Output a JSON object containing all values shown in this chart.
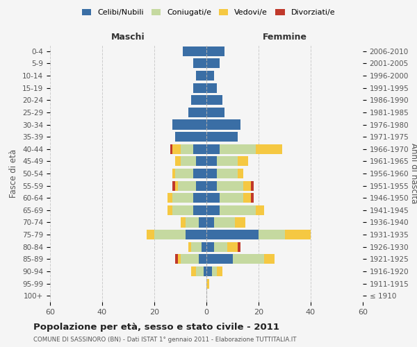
{
  "age_groups": [
    "100+",
    "95-99",
    "90-94",
    "85-89",
    "80-84",
    "75-79",
    "70-74",
    "65-69",
    "60-64",
    "55-59",
    "50-54",
    "45-49",
    "40-44",
    "35-39",
    "30-34",
    "25-29",
    "20-24",
    "15-19",
    "10-14",
    "5-9",
    "0-4"
  ],
  "birth_years": [
    "≤ 1910",
    "1911-1915",
    "1916-1920",
    "1921-1925",
    "1926-1930",
    "1931-1935",
    "1936-1940",
    "1941-1945",
    "1946-1950",
    "1951-1955",
    "1956-1960",
    "1961-1965",
    "1966-1970",
    "1971-1975",
    "1976-1980",
    "1981-1985",
    "1986-1990",
    "1991-1995",
    "1996-2000",
    "2001-2005",
    "2006-2010"
  ],
  "males": {
    "celibi": [
      0,
      0,
      1,
      3,
      2,
      8,
      3,
      5,
      5,
      4,
      5,
      4,
      5,
      12,
      13,
      7,
      6,
      5,
      4,
      5,
      9
    ],
    "coniugati": [
      0,
      0,
      3,
      7,
      4,
      12,
      5,
      8,
      8,
      7,
      7,
      6,
      5,
      0,
      0,
      0,
      0,
      0,
      0,
      0,
      0
    ],
    "vedovi": [
      0,
      0,
      2,
      1,
      1,
      3,
      2,
      2,
      2,
      1,
      1,
      2,
      3,
      0,
      0,
      0,
      0,
      0,
      0,
      0,
      0
    ],
    "divorziati": [
      0,
      0,
      0,
      1,
      0,
      0,
      0,
      0,
      0,
      1,
      0,
      0,
      1,
      0,
      0,
      0,
      0,
      0,
      0,
      0,
      0
    ]
  },
  "females": {
    "nubili": [
      0,
      0,
      2,
      10,
      3,
      20,
      3,
      5,
      5,
      4,
      4,
      4,
      5,
      12,
      13,
      7,
      6,
      4,
      3,
      5,
      7
    ],
    "coniugate": [
      0,
      0,
      2,
      12,
      5,
      10,
      8,
      14,
      9,
      10,
      8,
      8,
      14,
      0,
      0,
      0,
      0,
      0,
      0,
      0,
      0
    ],
    "vedove": [
      0,
      1,
      2,
      4,
      4,
      10,
      4,
      3,
      3,
      3,
      2,
      4,
      10,
      0,
      0,
      0,
      0,
      0,
      0,
      0,
      0
    ],
    "divorziate": [
      0,
      0,
      0,
      0,
      1,
      0,
      0,
      0,
      1,
      1,
      0,
      0,
      0,
      0,
      0,
      0,
      0,
      0,
      0,
      0,
      0
    ]
  },
  "color_celibi": "#3a6ea5",
  "color_coniugati": "#c5d9a0",
  "color_vedovi": "#f5c842",
  "color_divorziati": "#c0392b",
  "title": "Popolazione per età, sesso e stato civile - 2011",
  "subtitle": "COMUNE DI SASSINORO (BN) - Dati ISTAT 1° gennaio 2011 - Elaborazione TUTTITALIA.IT",
  "xlabel_left": "Maschi",
  "xlabel_right": "Femmine",
  "ylabel_left": "Fasce di età",
  "ylabel_right": "Anni di nascita",
  "xlim": 60,
  "background_color": "#f5f5f5"
}
